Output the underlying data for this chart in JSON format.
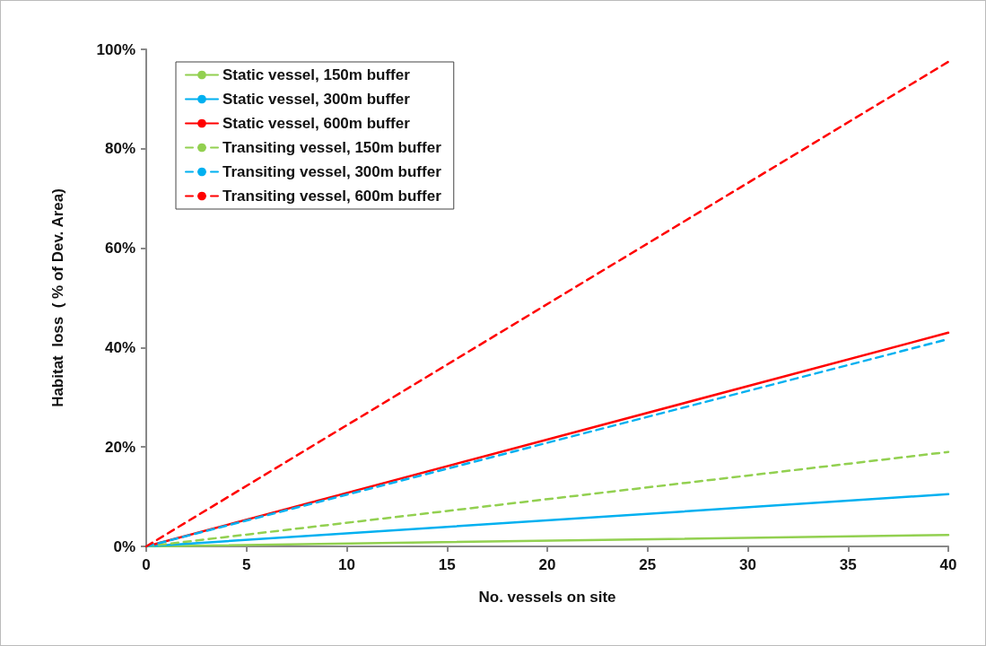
{
  "chart_data": {
    "type": "line",
    "xlabel": "No. vessels on site",
    "ylabel": "Habitat  loss  ( % of Dev. Area)",
    "x": [
      0,
      40
    ],
    "series": [
      {
        "name": "Static vessel, 150m buffer",
        "color": "#92d050",
        "line_style": "solid",
        "values": [
          0,
          2.3
        ]
      },
      {
        "name": "Static vessel, 300m buffer",
        "color": "#00b0f0",
        "line_style": "solid",
        "values": [
          0,
          10.5
        ]
      },
      {
        "name": "Static vessel, 600m buffer",
        "color": "#ff0000",
        "line_style": "solid",
        "values": [
          0,
          43
        ]
      },
      {
        "name": "Transiting vessel, 150m buffer",
        "color": "#92d050",
        "line_style": "dashed",
        "values": [
          0,
          19
        ]
      },
      {
        "name": "Transiting vessel, 300m buffer",
        "color": "#00b0f0",
        "line_style": "dashed",
        "values": [
          0,
          41.7
        ]
      },
      {
        "name": "Transiting vessel, 600m buffer",
        "color": "#ff0000",
        "line_style": "dashed",
        "values": [
          0,
          97.5
        ]
      }
    ],
    "xlim": [
      0,
      40
    ],
    "xticks": [
      0,
      5,
      10,
      15,
      20,
      25,
      30,
      35,
      40
    ],
    "ylim": [
      0,
      100
    ],
    "yticks": [
      {
        "value": 0,
        "label": "0%"
      },
      {
        "value": 20,
        "label": "20%"
      },
      {
        "value": 40,
        "label": "40%"
      },
      {
        "value": 60,
        "label": "60%"
      },
      {
        "value": 80,
        "label": "80%"
      },
      {
        "value": 100,
        "label": "100%"
      }
    ],
    "grid": false,
    "legend": "top left",
    "marker": "none"
  }
}
